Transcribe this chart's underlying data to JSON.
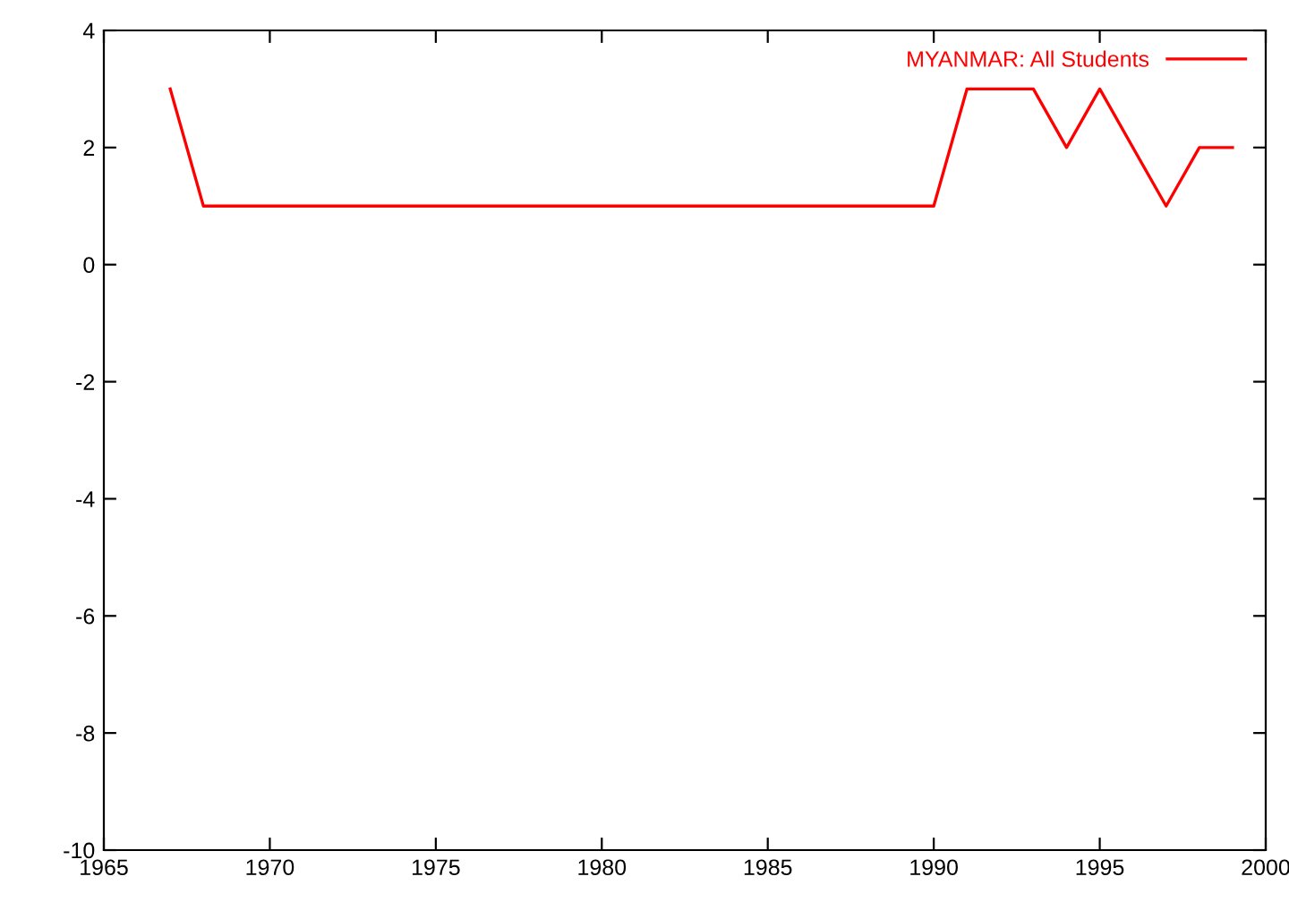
{
  "chart_data": {
    "type": "line",
    "x": [
      1967,
      1968,
      1990,
      1991,
      1993,
      1994,
      1995,
      1997,
      1998,
      1999
    ],
    "series": [
      {
        "name": "MYANMAR: All Students",
        "color": "#ff0000",
        "values": [
          3,
          1,
          1,
          3,
          3,
          2,
          3,
          1,
          2,
          2
        ]
      }
    ],
    "xlim": [
      1965,
      2000
    ],
    "xticks": [
      1965,
      1970,
      1975,
      1980,
      1985,
      1990,
      1995,
      2000
    ],
    "ylim": [
      -10,
      4
    ],
    "yticks": [
      -10,
      -8,
      -6,
      -4,
      -2,
      0,
      2,
      4
    ],
    "grid": false,
    "legend": "top right",
    "marker": "none",
    "line_style": "solid"
  }
}
